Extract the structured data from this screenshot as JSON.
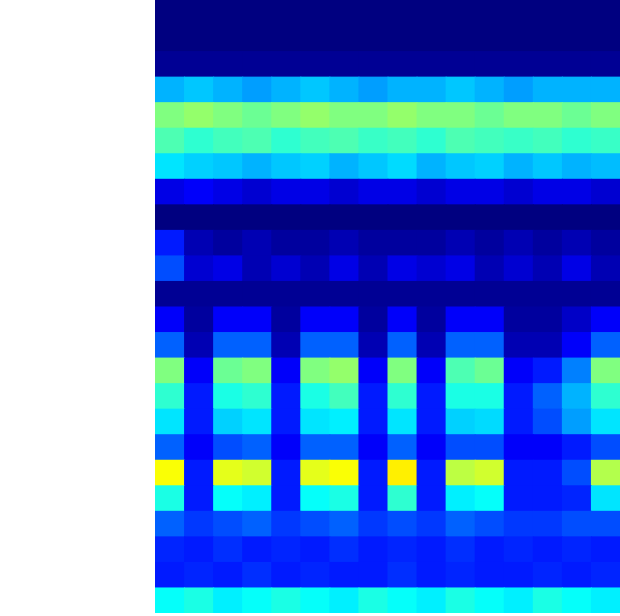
{
  "chart_data": {
    "type": "heatmap",
    "tick_labels": false,
    "xlim": [
      0,
      16
    ],
    "ylim": [
      0,
      24
    ],
    "color_range": [
      0,
      1
    ],
    "cells": [
      [
        0,
        0,
        0,
        0,
        0,
        0,
        0,
        0,
        0,
        0,
        0,
        0,
        0,
        0,
        0,
        0
      ],
      [
        0,
        0,
        0,
        0,
        0,
        0,
        0,
        0,
        0,
        0,
        0,
        0,
        0,
        0,
        0,
        0
      ],
      [
        0.02,
        0.02,
        0.02,
        0.02,
        0.02,
        0.02,
        0.02,
        0.02,
        0.02,
        0.02,
        0.02,
        0.02,
        0.02,
        0.02,
        0.02,
        0.02
      ],
      [
        0.3,
        0.32,
        0.3,
        0.28,
        0.3,
        0.32,
        0.3,
        0.28,
        0.3,
        0.3,
        0.32,
        0.3,
        0.28,
        0.3,
        0.3,
        0.3
      ],
      [
        0.5,
        0.52,
        0.5,
        0.48,
        0.5,
        0.52,
        0.5,
        0.5,
        0.52,
        0.5,
        0.5,
        0.48,
        0.5,
        0.5,
        0.48,
        0.5
      ],
      [
        0.45,
        0.42,
        0.44,
        0.45,
        0.42,
        0.44,
        0.45,
        0.43,
        0.44,
        0.42,
        0.45,
        0.44,
        0.43,
        0.44,
        0.42,
        0.43
      ],
      [
        0.35,
        0.33,
        0.32,
        0.3,
        0.32,
        0.33,
        0.3,
        0.32,
        0.34,
        0.3,
        0.32,
        0.33,
        0.3,
        0.32,
        0.3,
        0.31
      ],
      [
        0.1,
        0.12,
        0.1,
        0.08,
        0.1,
        0.1,
        0.08,
        0.1,
        0.1,
        0.08,
        0.1,
        0.1,
        0.08,
        0.1,
        0.1,
        0.08
      ],
      [
        0,
        0,
        0,
        0,
        0,
        0,
        0,
        0,
        0,
        0,
        0,
        0,
        0,
        0,
        0,
        0
      ],
      [
        0.15,
        0.05,
        0.03,
        0.05,
        0.03,
        0.03,
        0.05,
        0.03,
        0.03,
        0.03,
        0.05,
        0.03,
        0.05,
        0.03,
        0.05,
        0.03
      ],
      [
        0.2,
        0.08,
        0.1,
        0.05,
        0.08,
        0.05,
        0.1,
        0.05,
        0.1,
        0.08,
        0.1,
        0.05,
        0.08,
        0.05,
        0.1,
        0.05
      ],
      [
        0.02,
        0.02,
        0.02,
        0.02,
        0.02,
        0.02,
        0.02,
        0.02,
        0.02,
        0.02,
        0.02,
        0.02,
        0.02,
        0.02,
        0.02,
        0.02
      ],
      [
        0.12,
        0.03,
        0.12,
        0.12,
        0.03,
        0.12,
        0.12,
        0.03,
        0.12,
        0.03,
        0.12,
        0.12,
        0.03,
        0.03,
        0.07,
        0.12
      ],
      [
        0.22,
        0.05,
        0.22,
        0.22,
        0.05,
        0.22,
        0.22,
        0.05,
        0.22,
        0.05,
        0.22,
        0.22,
        0.05,
        0.05,
        0.12,
        0.22
      ],
      [
        0.5,
        0.12,
        0.48,
        0.5,
        0.12,
        0.5,
        0.52,
        0.12,
        0.5,
        0.12,
        0.45,
        0.48,
        0.12,
        0.15,
        0.25,
        0.5
      ],
      [
        0.42,
        0.15,
        0.4,
        0.42,
        0.15,
        0.4,
        0.44,
        0.15,
        0.42,
        0.15,
        0.4,
        0.4,
        0.15,
        0.22,
        0.3,
        0.42
      ],
      [
        0.35,
        0.15,
        0.33,
        0.35,
        0.15,
        0.35,
        0.36,
        0.15,
        0.35,
        0.15,
        0.33,
        0.34,
        0.15,
        0.2,
        0.28,
        0.35
      ],
      [
        0.22,
        0.12,
        0.2,
        0.22,
        0.12,
        0.22,
        0.22,
        0.12,
        0.22,
        0.12,
        0.2,
        0.2,
        0.12,
        0.12,
        0.15,
        0.2
      ],
      [
        0.62,
        0.15,
        0.6,
        0.58,
        0.15,
        0.6,
        0.62,
        0.15,
        0.64,
        0.15,
        0.56,
        0.58,
        0.15,
        0.15,
        0.2,
        0.55
      ],
      [
        0.4,
        0.15,
        0.38,
        0.36,
        0.15,
        0.38,
        0.4,
        0.15,
        0.42,
        0.15,
        0.36,
        0.38,
        0.15,
        0.15,
        0.16,
        0.35
      ],
      [
        0.22,
        0.18,
        0.2,
        0.22,
        0.18,
        0.2,
        0.22,
        0.18,
        0.2,
        0.18,
        0.22,
        0.2,
        0.18,
        0.18,
        0.2,
        0.2
      ],
      [
        0.16,
        0.15,
        0.17,
        0.15,
        0.16,
        0.15,
        0.17,
        0.15,
        0.16,
        0.15,
        0.17,
        0.15,
        0.16,
        0.15,
        0.16,
        0.15
      ],
      [
        0.15,
        0.16,
        0.15,
        0.17,
        0.15,
        0.16,
        0.15,
        0.15,
        0.17,
        0.15,
        0.16,
        0.15,
        0.15,
        0.16,
        0.15,
        0.16
      ],
      [
        0.38,
        0.4,
        0.36,
        0.38,
        0.4,
        0.38,
        0.36,
        0.4,
        0.38,
        0.36,
        0.4,
        0.38,
        0.36,
        0.4,
        0.38,
        0.36
      ]
    ]
  }
}
